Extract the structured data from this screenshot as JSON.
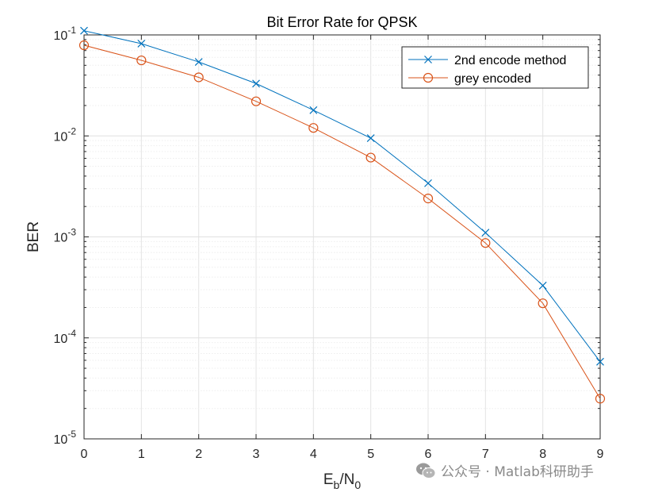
{
  "chart_data": {
    "type": "line",
    "title": "Bit Error Rate for QPSK",
    "xlabel": {
      "base": "E",
      "sub1": "b",
      "mid": "/N",
      "sub2": "0"
    },
    "ylabel": "BER",
    "x": [
      0,
      1,
      2,
      3,
      4,
      5,
      6,
      7,
      8,
      9
    ],
    "xlim": [
      0,
      9
    ],
    "ylim": [
      1e-05,
      0.1
    ],
    "yscale": "log",
    "xticks": [
      "0",
      "1",
      "2",
      "3",
      "4",
      "5",
      "6",
      "7",
      "8",
      "9"
    ],
    "yticks": [
      {
        "value": 0.1,
        "base": "10",
        "exp": "-1"
      },
      {
        "value": 0.01,
        "base": "10",
        "exp": "-2"
      },
      {
        "value": 0.001,
        "base": "10",
        "exp": "-3"
      },
      {
        "value": 0.0001,
        "base": "10",
        "exp": "-4"
      },
      {
        "value": 1e-05,
        "base": "10",
        "exp": "-5"
      }
    ],
    "grid": true,
    "legend_position": "top-right",
    "series": [
      {
        "name": "2nd encode method",
        "marker": "x",
        "color": "#0072BD",
        "values": [
          0.11,
          0.082,
          0.054,
          0.033,
          0.018,
          0.0095,
          0.0034,
          0.0011,
          0.00033,
          5.8e-05
        ]
      },
      {
        "name": "grey encoded",
        "marker": "o",
        "color": "#D95319",
        "values": [
          0.079,
          0.056,
          0.038,
          0.022,
          0.012,
          0.0061,
          0.0024,
          0.00087,
          0.00022,
          2.5e-05
        ]
      }
    ]
  },
  "watermark": {
    "text": "公众号 · Matlab科研助手",
    "icon": "wechat-icon"
  }
}
